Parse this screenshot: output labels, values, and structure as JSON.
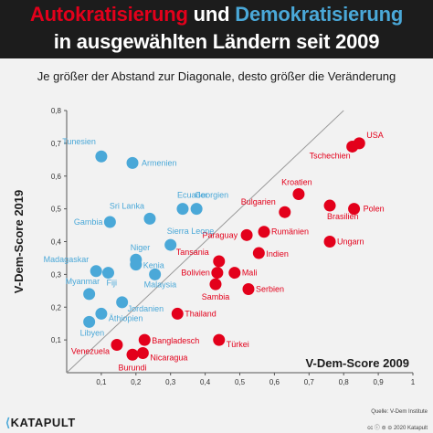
{
  "header": {
    "title_red": "Autokratisierung",
    "title_und": " und ",
    "title_blue": "Demokratisierung",
    "title_line2": "in ausgewählten Ländern seit 2009"
  },
  "subtitle": "Je größer der Abstand zur Diagonale, desto größer die Veränderung",
  "footer": {
    "logo": "KATAPULT",
    "source_line1": "Quelle: V-Dem Institute",
    "source_line2": "CC BY-NC-ND 2.0 2020 Katapult",
    "license": "cc ⓘ ⊜ ⊝ 2020 Katapult"
  },
  "colors": {
    "autocratization": "#e3001b",
    "democratization": "#4aa8d8",
    "header_bg": "#1c1c1c",
    "diagonal": "#9a9a9a"
  },
  "chart_data": {
    "type": "scatter",
    "xlabel": "V-Dem-Score 2009",
    "ylabel": "V-Dem-Score 2019",
    "xlim": [
      0,
      1
    ],
    "ylim": [
      0,
      0.8
    ],
    "xticks": [
      "0,1",
      "0,2",
      "0,3",
      "0,4",
      "0,5",
      "0,6",
      "0,7",
      "0,8",
      "0,9",
      "1"
    ],
    "yticks": [
      "0,1",
      "0,2",
      "0,3",
      "0,4",
      "0,5",
      "0,6",
      "0,7",
      "0,8"
    ],
    "diagonal": true,
    "grid": false,
    "series": [
      {
        "group": "autocratization",
        "points": [
          {
            "label": "USA",
            "x": 0.845,
            "y": 0.7
          },
          {
            "label": "Tschechien",
            "x": 0.825,
            "y": 0.69
          },
          {
            "label": "Kroatien",
            "x": 0.67,
            "y": 0.545
          },
          {
            "label": "Bulgarien",
            "x": 0.63,
            "y": 0.49
          },
          {
            "label": "Polen",
            "x": 0.83,
            "y": 0.5
          },
          {
            "label": "Brasilien",
            "x": 0.76,
            "y": 0.51
          },
          {
            "label": "Paraguay",
            "x": 0.52,
            "y": 0.42
          },
          {
            "label": "Rumänien",
            "x": 0.57,
            "y": 0.43
          },
          {
            "label": "Ungarn",
            "x": 0.76,
            "y": 0.4
          },
          {
            "label": "Tansania",
            "x": 0.44,
            "y": 0.34
          },
          {
            "label": "Indien",
            "x": 0.555,
            "y": 0.365
          },
          {
            "label": "Bolivien",
            "x": 0.435,
            "y": 0.305
          },
          {
            "label": "Mali",
            "x": 0.485,
            "y": 0.305
          },
          {
            "label": "Sambia",
            "x": 0.43,
            "y": 0.27
          },
          {
            "label": "Serbien",
            "x": 0.525,
            "y": 0.255
          },
          {
            "label": "Thailand",
            "x": 0.32,
            "y": 0.18
          },
          {
            "label": "Bangladesch",
            "x": 0.225,
            "y": 0.1
          },
          {
            "label": "Türkei",
            "x": 0.44,
            "y": 0.1
          },
          {
            "label": "Venezuela",
            "x": 0.145,
            "y": 0.085
          },
          {
            "label": "Nicaragua",
            "x": 0.22,
            "y": 0.06
          },
          {
            "label": "Burundi",
            "x": 0.19,
            "y": 0.055
          }
        ]
      },
      {
        "group": "democratization",
        "points": [
          {
            "label": "Tunesien",
            "x": 0.1,
            "y": 0.66
          },
          {
            "label": "Armenien",
            "x": 0.19,
            "y": 0.64
          },
          {
            "label": "Ecuador",
            "x": 0.335,
            "y": 0.5
          },
          {
            "label": "Georgien",
            "x": 0.375,
            "y": 0.5
          },
          {
            "label": "Sri Lanka",
            "x": 0.24,
            "y": 0.47
          },
          {
            "label": "Gambia",
            "x": 0.125,
            "y": 0.46
          },
          {
            "label": "Sierra Leone",
            "x": 0.3,
            "y": 0.39
          },
          {
            "label": "Niger",
            "x": 0.2,
            "y": 0.345
          },
          {
            "label": "Kenia",
            "x": 0.2,
            "y": 0.33
          },
          {
            "label": "Madagaskar",
            "x": 0.085,
            "y": 0.31
          },
          {
            "label": "Fiji",
            "x": 0.12,
            "y": 0.305
          },
          {
            "label": "Malaysia",
            "x": 0.255,
            "y": 0.3
          },
          {
            "label": "Myanmar",
            "x": 0.065,
            "y": 0.24
          },
          {
            "label": "Jordanien",
            "x": 0.16,
            "y": 0.215
          },
          {
            "label": "Äthiopien",
            "x": 0.1,
            "y": 0.18
          },
          {
            "label": "Libyen",
            "x": 0.065,
            "y": 0.155
          }
        ]
      }
    ]
  }
}
